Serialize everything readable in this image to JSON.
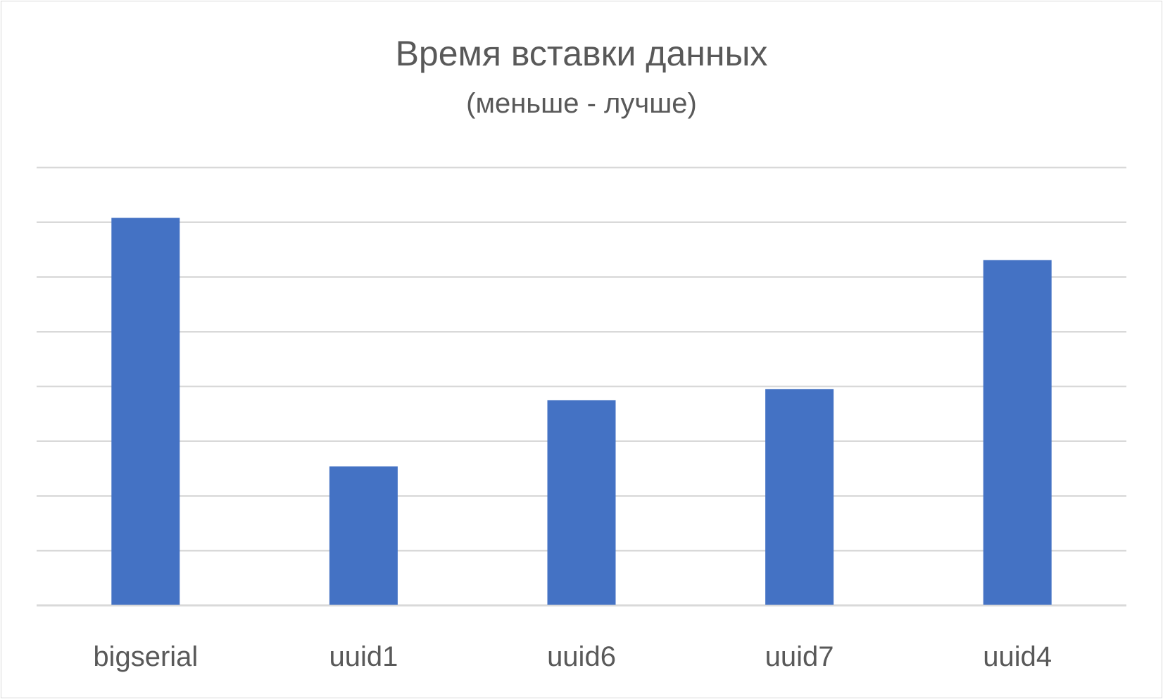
{
  "chart_data": {
    "type": "bar",
    "title": "Время вставки данных",
    "subtitle": "(меньше - лучше)",
    "categories": [
      "bigserial",
      "uuid1",
      "uuid6",
      "uuid7",
      "uuid4"
    ],
    "values": [
      7.08,
      2.54,
      3.75,
      3.95,
      6.31
    ],
    "ylim": [
      0,
      8
    ],
    "grid": true,
    "y_tick_labels_shown": false,
    "colors": {
      "bar": "#4472C4",
      "grid": "#D9D9D9",
      "text": "#595959",
      "border": "#D9D9D9"
    }
  }
}
